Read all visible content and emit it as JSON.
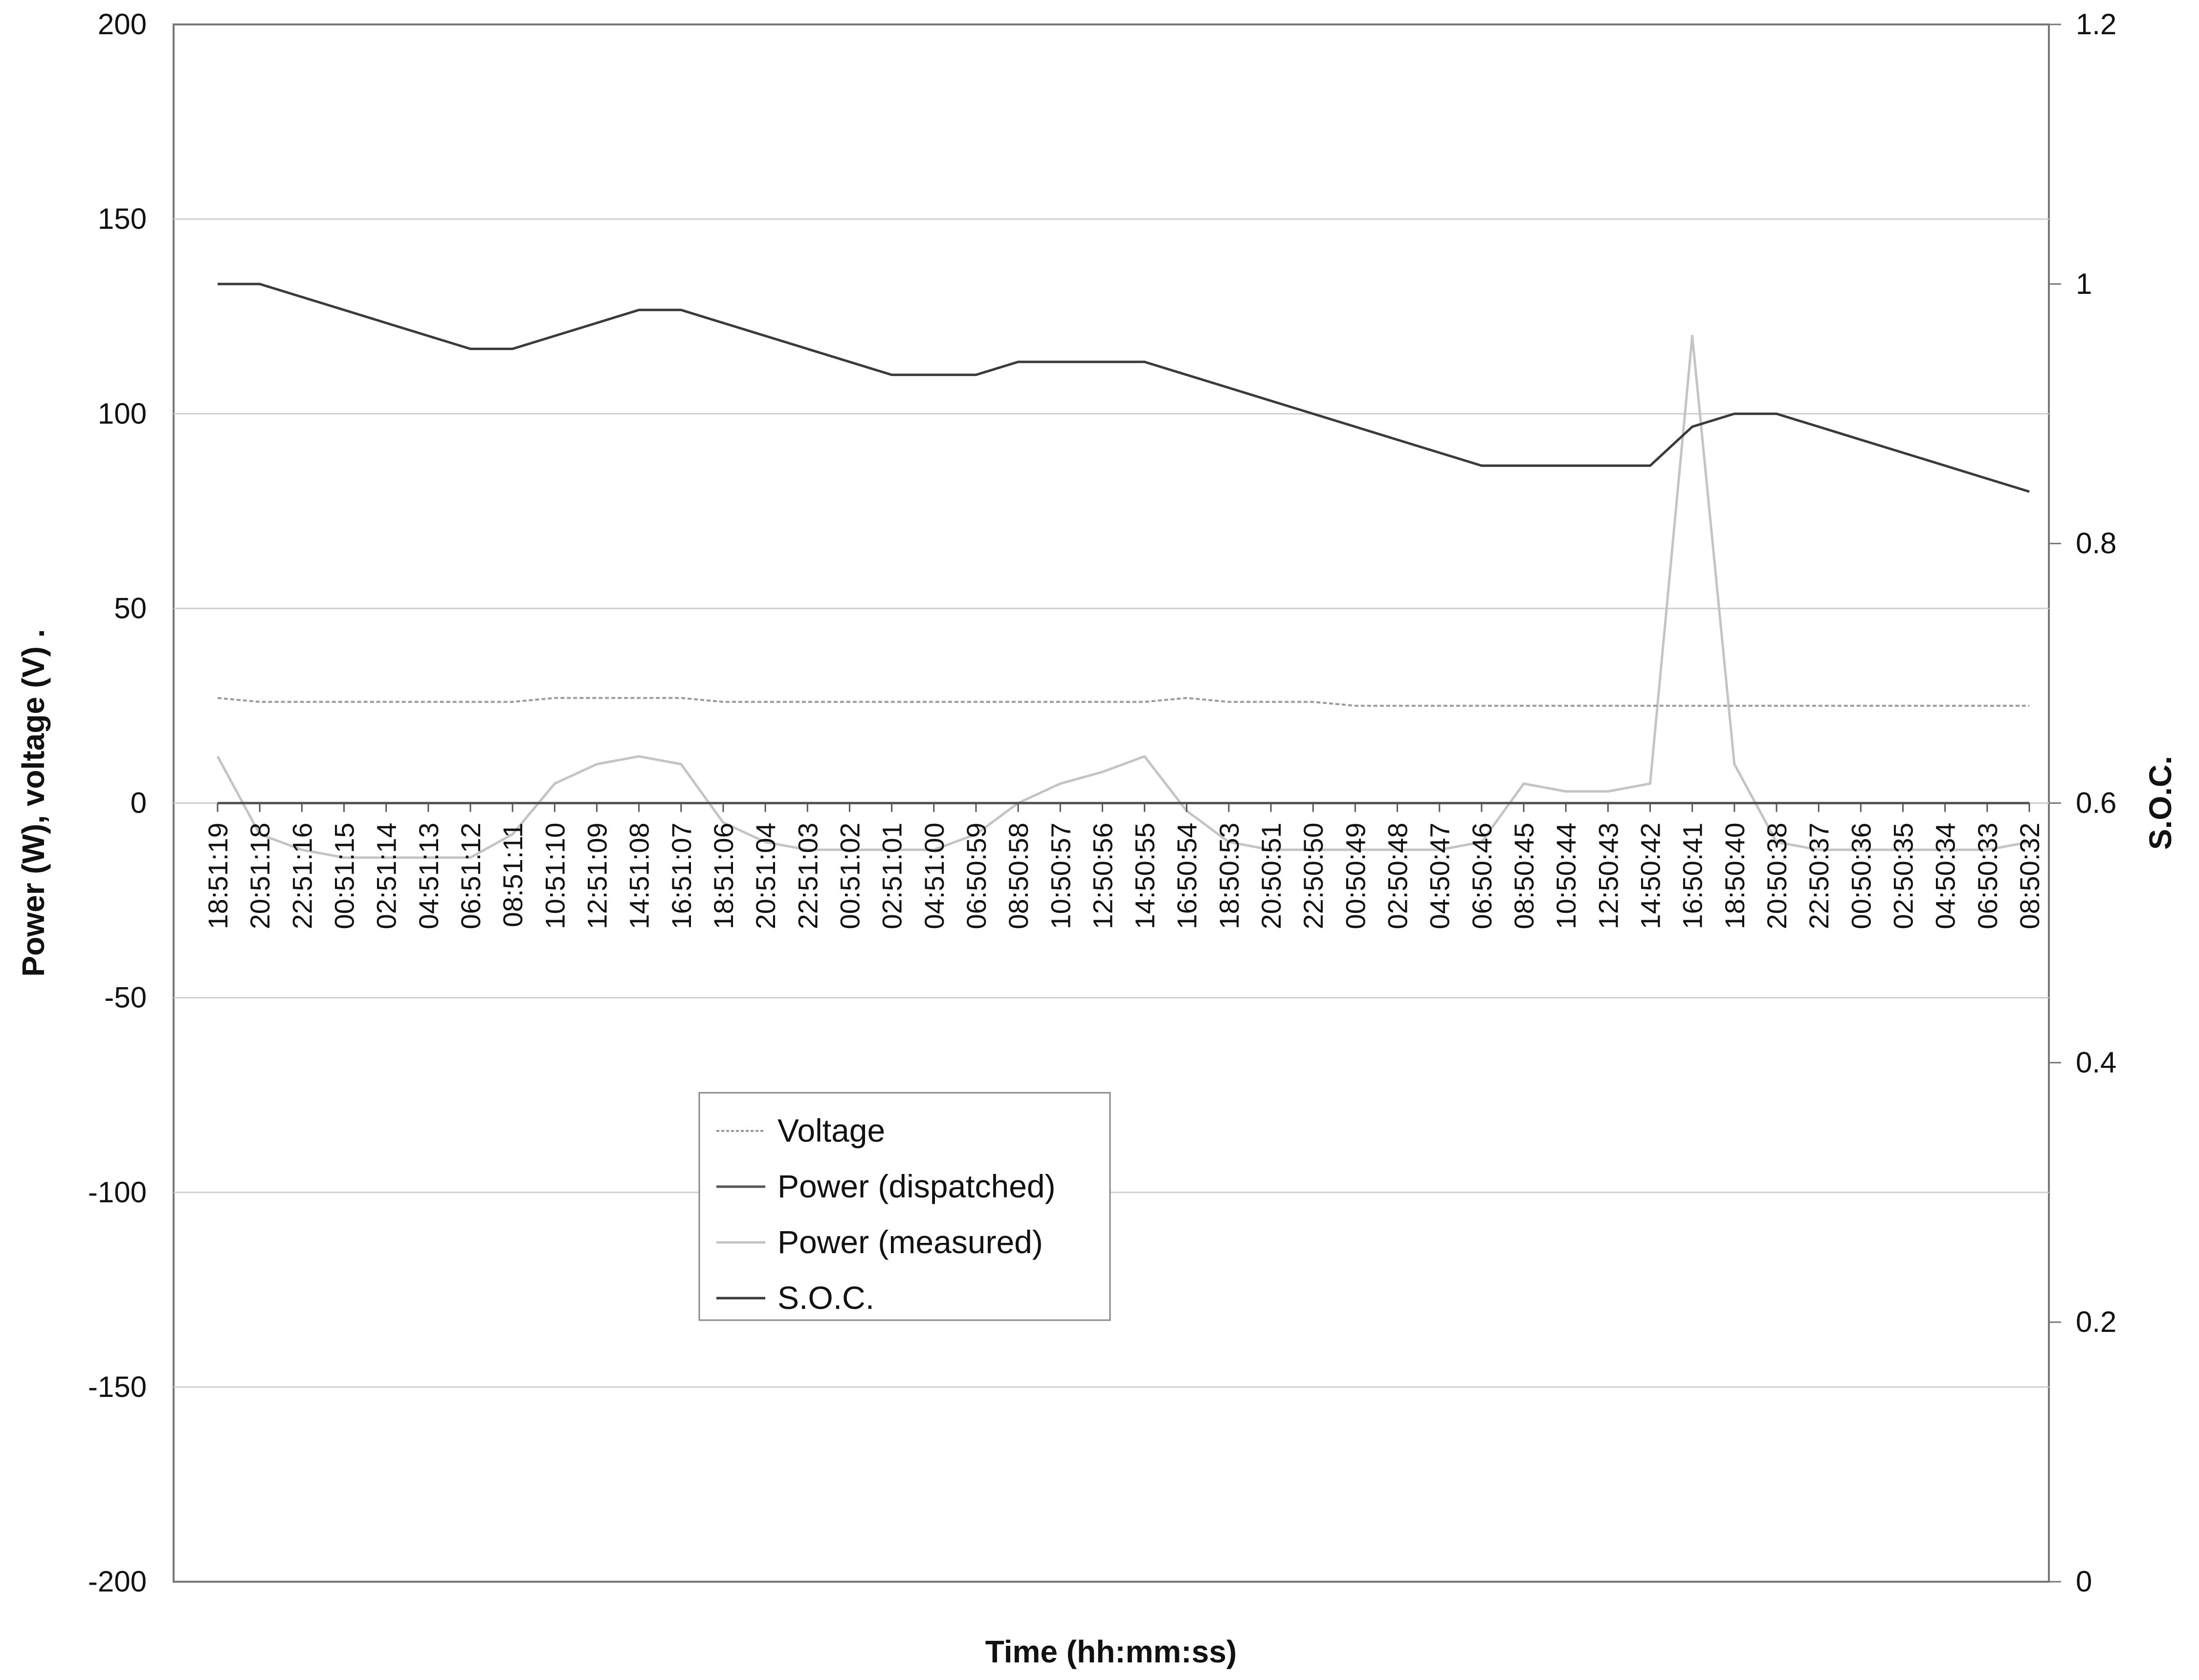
{
  "chart_data": {
    "type": "line",
    "xlabel": "Time (hh:mm:ss)",
    "ylabel": "Power (W), voltage (V)  .",
    "y2label": "S.O.C.",
    "ylim": [
      -200,
      200
    ],
    "y2lim": [
      0,
      1.2
    ],
    "yticks": [
      "200",
      "150",
      "100",
      "50",
      "0",
      "-50",
      "-100",
      "-150",
      "-200"
    ],
    "y2ticks": [
      "1.2",
      "1",
      "0.8",
      "0.6",
      "0.4",
      "0.2",
      "0"
    ],
    "grid": true,
    "legend_position": "lower-center",
    "categories": [
      "18:51:19",
      "20:51:18",
      "22:51:16",
      "00:51:15",
      "02:51:14",
      "04:51:13",
      "06:51:12",
      "08:51:11",
      "10:51:10",
      "12:51:09",
      "14:51:08",
      "16:51:07",
      "18:51:06",
      "20:51:04",
      "22:51:03",
      "00:51:02",
      "02:51:01",
      "04:51:00",
      "06:50:59",
      "08:50:58",
      "10:50:57",
      "12:50:56",
      "14:50:55",
      "16:50:54",
      "18:50:53",
      "20:50:51",
      "22:50:50",
      "00:50:49",
      "02:50:48",
      "04:50:47",
      "06:50:46",
      "08:50:45",
      "10:50:44",
      "12:50:43",
      "14:50:42",
      "16:50:41",
      "18:50:40",
      "20:50:38",
      "22:50:37",
      "00:50:36",
      "02:50:35",
      "04:50:34",
      "06:50:33",
      "08:50:32"
    ],
    "series": [
      {
        "name": "Voltage",
        "axis": "left",
        "color": "#9a9a9a",
        "values": [
          27,
          26,
          26,
          26,
          26,
          26,
          26,
          26,
          27,
          27,
          27,
          27,
          26,
          26,
          26,
          26,
          26,
          26,
          26,
          26,
          26,
          26,
          26,
          27,
          26,
          26,
          26,
          25,
          25,
          25,
          25,
          25,
          25,
          25,
          25,
          25,
          25,
          25,
          25,
          25,
          25,
          25,
          25,
          25
        ]
      },
      {
        "name": "Power (dispatched)",
        "axis": "left",
        "color": "#555555",
        "values": [
          0,
          0,
          0,
          0,
          0,
          0,
          0,
          0,
          0,
          0,
          0,
          0,
          0,
          0,
          0,
          0,
          0,
          0,
          0,
          0,
          0,
          0,
          0,
          0,
          0,
          0,
          0,
          0,
          0,
          0,
          0,
          0,
          0,
          0,
          0,
          0,
          0,
          0,
          0,
          0,
          0,
          0,
          0,
          0
        ]
      },
      {
        "name": "Power (measured)",
        "axis": "left",
        "color": "#c4c4c4",
        "values": [
          12,
          -8,
          -12,
          -14,
          -14,
          -14,
          -14,
          -8,
          5,
          10,
          12,
          10,
          -5,
          -10,
          -12,
          -12,
          -12,
          -12,
          -8,
          0,
          5,
          8,
          12,
          -2,
          -10,
          -12,
          -12,
          -12,
          -12,
          -12,
          -10,
          5,
          3,
          3,
          5,
          120,
          10,
          -10,
          -12,
          -12,
          -12,
          -12,
          -12,
          -10
        ]
      },
      {
        "name": "S.O.C.",
        "axis": "right",
        "color": "#3a3a3a",
        "values": [
          1.0,
          1.0,
          0.99,
          0.98,
          0.97,
          0.96,
          0.95,
          0.95,
          0.96,
          0.97,
          0.98,
          0.98,
          0.97,
          0.96,
          0.95,
          0.94,
          0.93,
          0.93,
          0.93,
          0.94,
          0.94,
          0.94,
          0.94,
          0.93,
          0.92,
          0.91,
          0.9,
          0.89,
          0.88,
          0.87,
          0.86,
          0.86,
          0.86,
          0.86,
          0.86,
          0.89,
          0.9,
          0.9,
          0.89,
          0.88,
          0.87,
          0.86,
          0.85,
          0.84
        ]
      }
    ]
  }
}
